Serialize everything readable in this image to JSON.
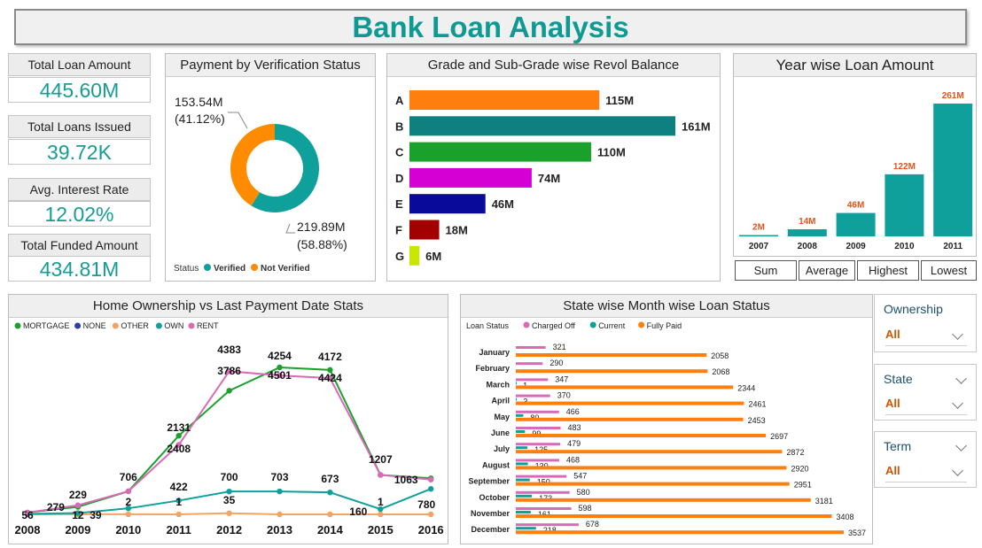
{
  "title": "Bank Loan Analysis",
  "kpis": [
    {
      "label": "Total Loan Amount",
      "value": "445.60M"
    },
    {
      "label": "Total Loans Issued",
      "value": "39.72K"
    },
    {
      "label": "Avg. Interest Rate",
      "value": "12.02%"
    },
    {
      "label": "Total Funded Amount",
      "value": "434.81M"
    }
  ],
  "colors": {
    "teal": "#10a09b",
    "orange": "#ff8c00",
    "green": "#1aa12b",
    "magenta": "#d400d4",
    "navy": "#0a0a9a",
    "darkred": "#a30000",
    "lime": "#c8e600",
    "pink": "#d86ab8",
    "tealDark": "#0f8080"
  },
  "verification": {
    "title": "Payment by Verification Status",
    "legend_title": "Status",
    "slices": [
      {
        "name": "Not Verified",
        "value": 153.54,
        "label": "153.54M",
        "pct": "(41.12%)",
        "color": "#ff8c00"
      },
      {
        "name": "Verified",
        "value": 219.89,
        "label": "219.89M",
        "pct": "(58.88%)",
        "color": "#10a09b"
      }
    ]
  },
  "grade": {
    "title": "Grade and Sub-Grade wise Revol Balance",
    "bars": [
      {
        "cat": "A",
        "value": 115,
        "label": "115M",
        "color": "#ff7f0e"
      },
      {
        "cat": "B",
        "value": 161,
        "label": "161M",
        "color": "#0f8080"
      },
      {
        "cat": "C",
        "value": 110,
        "label": "110M",
        "color": "#1aa12b"
      },
      {
        "cat": "D",
        "value": 74,
        "label": "74M",
        "color": "#d400d4"
      },
      {
        "cat": "E",
        "value": 46,
        "label": "46M",
        "color": "#0a0a9a"
      },
      {
        "cat": "F",
        "value": 18,
        "label": "18M",
        "color": "#a30000"
      },
      {
        "cat": "G",
        "value": 6,
        "label": "6M",
        "color": "#c8e600"
      }
    ]
  },
  "year": {
    "title": "Year wise Loan Amount",
    "bars": [
      {
        "cat": "2007",
        "value": 2,
        "label": "2M"
      },
      {
        "cat": "2008",
        "value": 14,
        "label": "14M"
      },
      {
        "cat": "2009",
        "value": 46,
        "label": "46M"
      },
      {
        "cat": "2010",
        "value": 122,
        "label": "122M"
      },
      {
        "cat": "2011",
        "value": 261,
        "label": "261M"
      }
    ],
    "buttons": [
      "Sum",
      "Average",
      "Highest",
      "Lowest"
    ]
  },
  "home": {
    "title": "Home Ownership vs Last Payment Date Stats",
    "years": [
      "2008",
      "2009",
      "2010",
      "2011",
      "2012",
      "2013",
      "2014",
      "2015",
      "2016"
    ],
    "series": [
      {
        "name": "MORTGAGE",
        "color": "#1aa12b",
        "values": [
          56,
          229,
          706,
          2408,
          3786,
          4501,
          4424,
          1207,
          1104
        ],
        "labels": [
          "",
          "229",
          "706",
          "2408",
          "3786",
          "4501",
          "4424",
          "",
          ""
        ]
      },
      {
        "name": "NONE",
        "color": "#2c3e9e",
        "values": [
          0,
          0,
          0,
          0,
          0,
          0,
          0,
          0,
          0
        ],
        "labels": []
      },
      {
        "name": "OTHER",
        "color": "#f4a460",
        "values": [
          1,
          2,
          2,
          1,
          35,
          0,
          0,
          0,
          0
        ],
        "labels": [
          "",
          "",
          "2",
          "1",
          "35",
          "",
          "",
          "",
          ""
        ]
      },
      {
        "name": "OWN",
        "color": "#10a09b",
        "values": [
          12,
          39,
          185,
          422,
          700,
          703,
          673,
          160,
          780
        ],
        "labels": [
          "",
          "39",
          "185",
          "422",
          "700",
          "703",
          "673",
          "160",
          "780"
        ]
      },
      {
        "name": "RENT",
        "color": "#d86ab8",
        "values": [
          56,
          279,
          706,
          2131,
          4383,
          4254,
          4172,
          1207,
          1063
        ],
        "labels": [
          "56",
          "279",
          "",
          "2131",
          "4383",
          "4254",
          "4172",
          "1207",
          "1063"
        ]
      }
    ],
    "extra_labels": [
      "12",
      "1"
    ]
  },
  "state": {
    "title": "State wise Month wise Loan Status",
    "legend_title": "Loan Status",
    "legend": [
      {
        "name": "Charged Off",
        "color": "#d86ab8"
      },
      {
        "name": "Current",
        "color": "#10a09b"
      },
      {
        "name": "Fully Paid",
        "color": "#ff7f0e"
      }
    ],
    "rows": [
      {
        "month": "January",
        "charged": 321,
        "current": 0,
        "paid": 2058
      },
      {
        "month": "February",
        "charged": 290,
        "current": 0,
        "paid": 2068
      },
      {
        "month": "March",
        "charged": 347,
        "current": 1,
        "paid": 2344
      },
      {
        "month": "April",
        "charged": 370,
        "current": 3,
        "paid": 2461
      },
      {
        "month": "May",
        "charged": 466,
        "current": 80,
        "paid": 2453
      },
      {
        "month": "June",
        "charged": 483,
        "current": 99,
        "paid": 2697
      },
      {
        "month": "July",
        "charged": 479,
        "current": 125,
        "paid": 2872
      },
      {
        "month": "August",
        "charged": 468,
        "current": 130,
        "paid": 2920
      },
      {
        "month": "September",
        "charged": 547,
        "current": 150,
        "paid": 2951
      },
      {
        "month": "October",
        "charged": 580,
        "current": 173,
        "paid": 3181
      },
      {
        "month": "November",
        "charged": 598,
        "current": 161,
        "paid": 3408
      },
      {
        "month": "December",
        "charged": 678,
        "current": 218,
        "paid": 3537
      }
    ]
  },
  "slicers": [
    {
      "title": "Ownership",
      "value": "All"
    },
    {
      "title": "State",
      "value": "All"
    },
    {
      "title": "Term",
      "value": "All"
    }
  ]
}
